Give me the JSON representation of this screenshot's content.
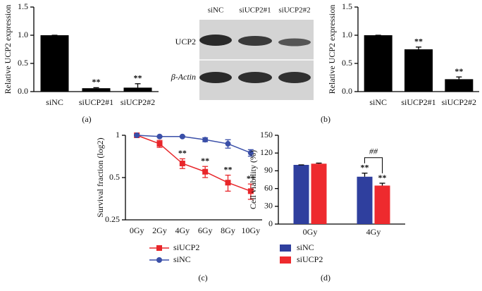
{
  "chart_data": [
    {
      "type": "bar",
      "panel": "(a)",
      "y_label": "Relative UCP2 expression",
      "categories": [
        "siNC",
        "siUCP2#1",
        "siUCP2#2"
      ],
      "values": [
        1.0,
        0.06,
        0.07
      ],
      "errors": [
        0,
        0.01,
        0.07
      ],
      "significance": [
        null,
        "**",
        "**"
      ],
      "color": "#000000",
      "ylim": [
        0,
        1.5
      ],
      "yticks": [
        {
          "value": 0,
          "label": "0.0"
        },
        {
          "value": 0.5,
          "label": "0.5"
        },
        {
          "value": 1,
          "label": "1.0"
        },
        {
          "value": 1.5,
          "label": "1.5"
        }
      ]
    },
    {
      "type": "bar",
      "panel": "(b)",
      "y_label": "Relative UCP2 expression",
      "categories": [
        "siNC",
        "siUCP2#1",
        "siUCP2#2"
      ],
      "values": [
        1.0,
        0.75,
        0.22
      ],
      "errors": [
        0,
        0.04,
        0.04
      ],
      "significance": [
        null,
        "**",
        "**"
      ],
      "color": "#000000",
      "ylim": [
        0,
        1.5
      ],
      "yticks": [
        {
          "value": 0,
          "label": "0.0"
        },
        {
          "value": 0.5,
          "label": "0.5"
        },
        {
          "value": 1,
          "label": "1.0"
        },
        {
          "value": 1.5,
          "label": "1.5"
        }
      ]
    },
    {
      "type": "line",
      "panel": "(c)",
      "y_label": "Survival fraction (log2)",
      "log_scale": 2,
      "categories": [
        "0Gy",
        "2Gy",
        "4Gy",
        "6Gy",
        "8Gy",
        "10Gy"
      ],
      "series": [
        {
          "name": "siUCP2",
          "color": "#e8262a",
          "marker": "square",
          "values": [
            1.0,
            0.87,
            0.63,
            0.55,
            0.46,
            0.4
          ],
          "errors": [
            0.01,
            0.05,
            0.05,
            0.05,
            0.06,
            0.05
          ],
          "significance": [
            null,
            null,
            "**",
            "**",
            "**",
            "**"
          ]
        },
        {
          "name": "siNC",
          "color": "#3a4fa8",
          "marker": "circle",
          "values": [
            1.0,
            0.98,
            0.98,
            0.93,
            0.87,
            0.75
          ],
          "errors": [
            0.01,
            0.01,
            0.01,
            0.03,
            0.06,
            0.04
          ]
        }
      ],
      "ylim": [
        0.25,
        1
      ],
      "yticks": [
        0.25,
        0.5,
        1
      ]
    },
    {
      "type": "bar",
      "panel": "(d)",
      "y_label": "Cell viability (%)",
      "categories": [
        "0Gy",
        "4Gy"
      ],
      "series": [
        {
          "name": "siNC",
          "color": "#2f3f9e",
          "values": [
            100,
            80
          ],
          "errors": [
            0,
            6
          ],
          "significance": [
            null,
            "**"
          ]
        },
        {
          "name": "siUCP2",
          "color": "#ee2a2e",
          "values": [
            102,
            65
          ],
          "errors": [
            1,
            4
          ],
          "significance": [
            null,
            "**"
          ]
        }
      ],
      "comparison": {
        "label": "##",
        "category": 1
      },
      "ylim": [
        0,
        150
      ],
      "yticks": [
        0,
        30,
        60,
        90,
        120,
        150
      ]
    }
  ],
  "blot": {
    "lanes": [
      "siNC",
      "siUCP2#1",
      "siUCP2#2"
    ],
    "rows": [
      "UCP2",
      "β-Actin"
    ]
  }
}
